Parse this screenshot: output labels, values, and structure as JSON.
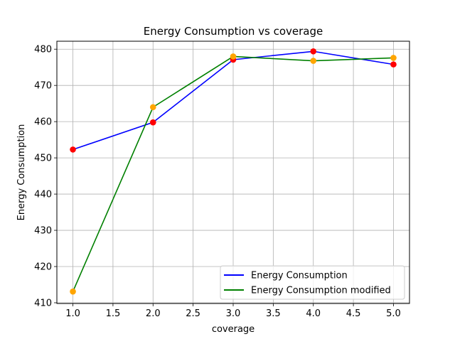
{
  "chart_data": {
    "type": "line",
    "title": "Energy Consumption vs coverage",
    "xlabel": "coverage",
    "ylabel": "Energy Consumption",
    "x": [
      1.0,
      2.0,
      3.0,
      4.0,
      5.0
    ],
    "xlim": [
      0.8,
      5.2
    ],
    "ylim": [
      409.8,
      482.2
    ],
    "xticks": [
      "1.0",
      "1.5",
      "2.0",
      "2.5",
      "3.0",
      "3.5",
      "4.0",
      "4.5",
      "5.0"
    ],
    "yticks": [
      "410",
      "420",
      "430",
      "440",
      "450",
      "460",
      "470",
      "480"
    ],
    "grid": true,
    "legend_position": "lower-right",
    "series": [
      {
        "name": "Energy Consumption",
        "values": [
          452.3,
          459.8,
          477.1,
          479.4,
          475.8
        ],
        "line_color": "#0000ff",
        "marker_color": "#ff0000"
      },
      {
        "name": "Energy Consumption modified",
        "values": [
          413.1,
          464.0,
          478.0,
          476.8,
          477.6
        ],
        "line_color": "#008000",
        "marker_color": "#ffa500"
      }
    ]
  }
}
